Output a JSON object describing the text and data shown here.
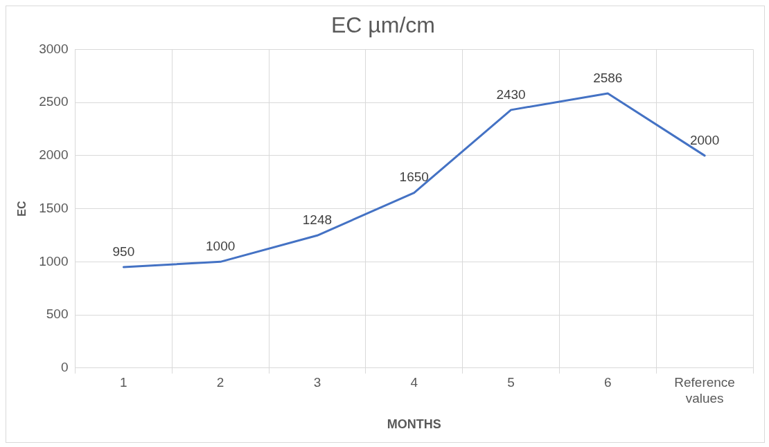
{
  "chart_data": {
    "type": "line",
    "title": "EC µm/cm",
    "xlabel": "MONTHS",
    "ylabel": "EC",
    "categories": [
      "1",
      "2",
      "3",
      "4",
      "5",
      "6",
      "Reference values"
    ],
    "series": [
      {
        "color": "#4472c4",
        "values": [
          950,
          1000,
          1248,
          1650,
          2430,
          2586,
          2000
        ]
      }
    ],
    "ylim": [
      0,
      3000
    ],
    "yticks": [
      0,
      500,
      1000,
      1500,
      2000,
      2500,
      3000
    ],
    "grid": true,
    "data_labels": true,
    "marker": "none",
    "line_style": "solid"
  }
}
